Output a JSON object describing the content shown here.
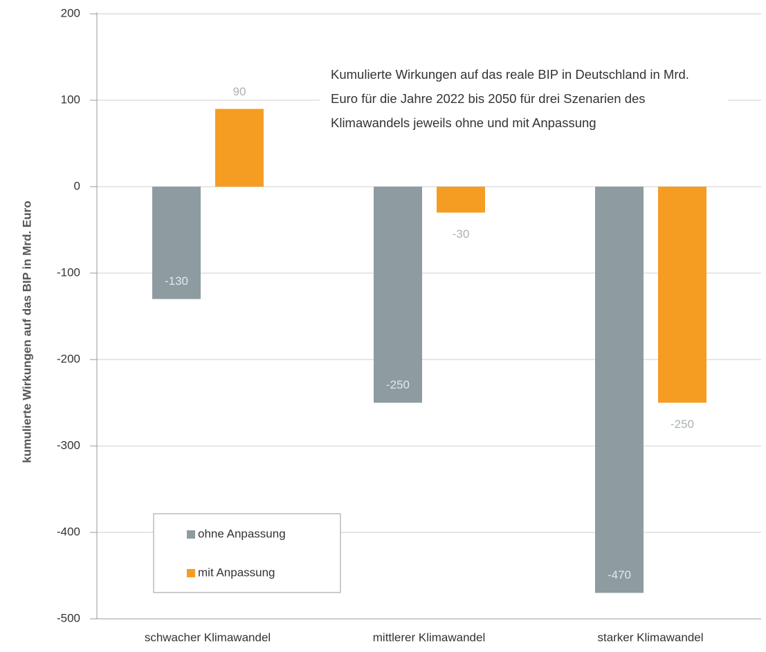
{
  "chart_data": {
    "type": "bar",
    "title": "Kumulierte Wirkungen auf das reale BIP in Deutschland in Mrd. Euro für die Jahre 2022 bis 2050 für drei Szenarien des Klimawandels jeweils ohne und mit Anpassung",
    "y_label": "kumulierte Wirkungen auf das BIP in Mrd. Euro",
    "categories": [
      "schwacher Klimawandel",
      "mittlerer Klimawandel",
      "starker Klimawandel"
    ],
    "series": [
      {
        "name": "ohne Anpassung",
        "color": "#8e9ba1",
        "values": [
          -130,
          -250,
          -470
        ]
      },
      {
        "name": "mit Anpassung",
        "color": "#f59d23",
        "values": [
          90,
          -30,
          -250
        ]
      }
    ],
    "ylim": [
      -500,
      200
    ],
    "yticks": [
      -500,
      -400,
      -300,
      -200,
      -100,
      0,
      100,
      200
    ],
    "grid": true,
    "legend": "lower left"
  }
}
